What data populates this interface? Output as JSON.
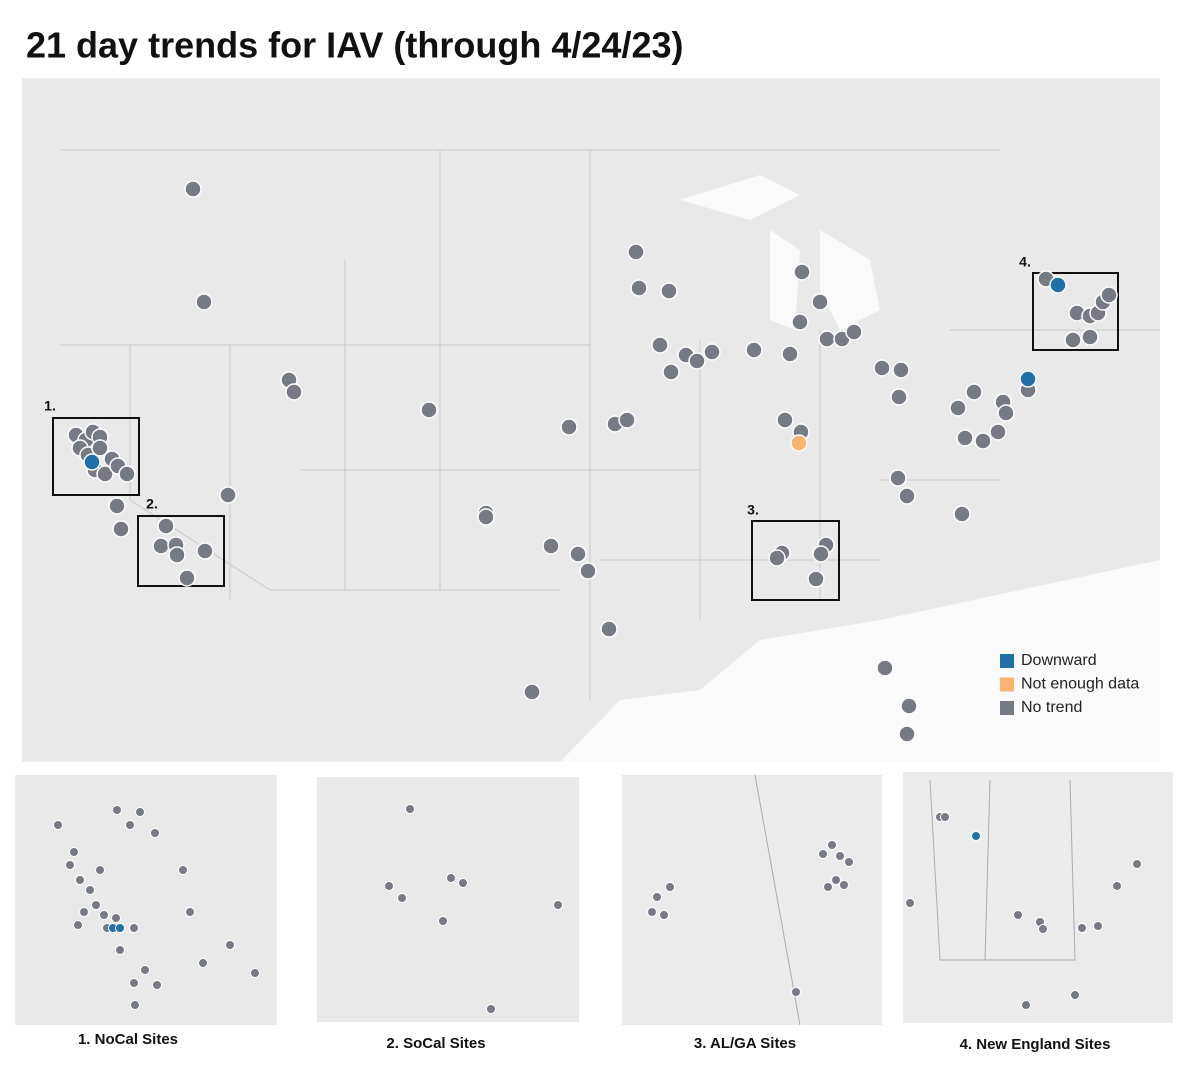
{
  "title": "21 day trends for IAV (through 4/24/23)",
  "legend": [
    {
      "name": "Downward",
      "color": "#1f6fa8"
    },
    {
      "name": "Not enough data",
      "color": "#f8b46e"
    },
    {
      "name": "No trend",
      "color": "#767a85"
    }
  ],
  "inset_markers": [
    "1.",
    "2.",
    "3.",
    "4."
  ],
  "inset_captions": [
    "1. NoCal Sites",
    "2. SoCal Sites",
    "3. AL/GA Sites",
    "4. New England Sites"
  ]
}
